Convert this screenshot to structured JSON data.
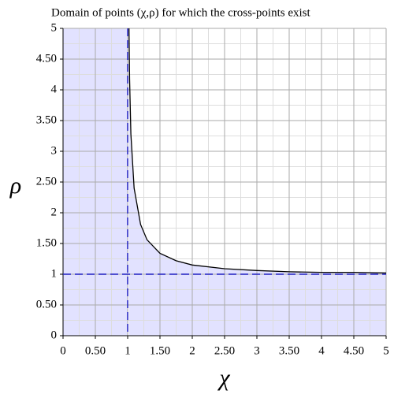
{
  "chart_data": {
    "type": "line",
    "title": "Domain of points (χ,ρ) for which the cross-points exist",
    "x_label": "χ",
    "y_label": "ρ",
    "xlim": [
      0,
      5
    ],
    "ylim": [
      0,
      5
    ],
    "xticks": [
      0,
      {
        "value": 0.5,
        "label": "0.50"
      },
      1,
      {
        "value": 1.5,
        "label": "1.50"
      },
      2,
      {
        "value": 2.5,
        "label": "2.50"
      },
      3,
      {
        "value": 3.5,
        "label": "3.50"
      },
      4,
      {
        "value": 4.5,
        "label": "4.50"
      },
      5
    ],
    "yticks": [
      0,
      {
        "value": 0.5,
        "label": "0.50"
      },
      1,
      {
        "value": 1.5,
        "label": "1.50"
      },
      2,
      {
        "value": 2.5,
        "label": "2.50"
      },
      3,
      {
        "value": 3.5,
        "label": "3.50"
      },
      4,
      {
        "value": 4.5,
        "label": "4.50"
      },
      5
    ],
    "minor_ticks": [
      0.25,
      0.75,
      1.25,
      1.75,
      2.25,
      2.75,
      3.25,
      3.75,
      4.25,
      4.75
    ],
    "grid": true,
    "shade_color": "#e2e2ff",
    "series": [
      {
        "color": "#000000",
        "x": [
          1.02,
          1.03,
          1.05,
          1.1,
          1.2,
          1.3,
          1.5,
          1.75,
          2,
          2.5,
          3,
          3.5,
          4,
          4.5,
          5
        ],
        "values": [
          5.07,
          4.17,
          3.28,
          2.4,
          1.81,
          1.56,
          1.34,
          1.22,
          1.15,
          1.09,
          1.06,
          1.04,
          1.03,
          1.03,
          1.02
        ]
      }
    ],
    "reference_lines": [
      {
        "x": 1,
        "color": "#2020c0"
      },
      {
        "y": 1,
        "color": "#2020c0"
      }
    ]
  }
}
